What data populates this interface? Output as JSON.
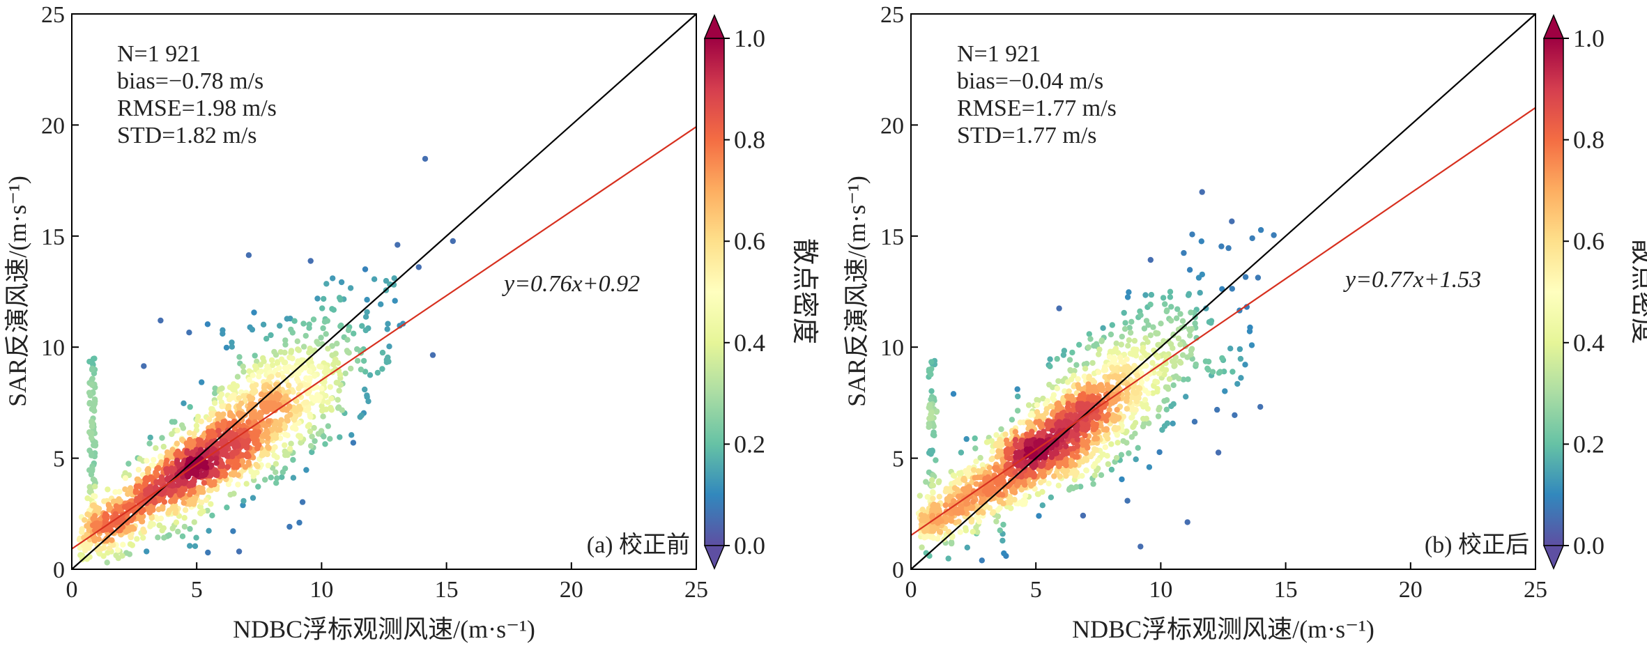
{
  "colormap": [
    "#5e4fa2",
    "#3288bd",
    "#66c2a5",
    "#abdda4",
    "#e6f598",
    "#ffffbf",
    "#fee08b",
    "#fdae61",
    "#f46d43",
    "#d53e4f",
    "#9e0142"
  ],
  "identity_line_color": "#000000",
  "fit_line_color": "#d7301f",
  "chart_data": [
    {
      "type": "scatter",
      "panel_label": "(a) 校正前",
      "xlabel": "NDBC浮标观测风速/(m·s⁻¹)",
      "ylabel": "SAR反演风速/(m·s⁻¹)",
      "xlim": [
        0,
        25
      ],
      "ylim": [
        0,
        25
      ],
      "x_ticks": [
        "0",
        "5",
        "10",
        "15",
        "20",
        "25"
      ],
      "y_ticks": [
        "0",
        "5",
        "10",
        "15",
        "20",
        "25"
      ],
      "grid": false,
      "stats": [
        "N=1 921",
        "bias=−0.78 m/s",
        "RMSE=1.98 m/s",
        "STD=1.82 m/s"
      ],
      "fit": {
        "slope": 0.76,
        "intercept": 0.92,
        "label": "y=0.76x+0.92"
      },
      "identity_line": true,
      "n_points": 1921,
      "colorbar": {
        "label": "散点密度",
        "range": [
          0,
          1
        ],
        "ticks": [
          "0.0",
          "0.2",
          "0.4",
          "0.6",
          "0.8",
          "1.0"
        ],
        "extend": "both",
        "colormap": "Spectral_r"
      }
    },
    {
      "type": "scatter",
      "panel_label": "(b) 校正后",
      "xlabel": "NDBC浮标观测风速/(m·s⁻¹)",
      "ylabel": "SAR反演风速/(m·s⁻¹)",
      "xlim": [
        0,
        25
      ],
      "ylim": [
        0,
        25
      ],
      "x_ticks": [
        "0",
        "5",
        "10",
        "15",
        "20",
        "25"
      ],
      "y_ticks": [
        "0",
        "5",
        "10",
        "15",
        "20",
        "25"
      ],
      "grid": false,
      "stats": [
        "N=1 921",
        "bias=−0.04 m/s",
        "RMSE=1.77 m/s",
        "STD=1.77 m/s"
      ],
      "fit": {
        "slope": 0.77,
        "intercept": 1.53,
        "label": "y=0.77x+1.53"
      },
      "identity_line": true,
      "n_points": 1921,
      "colorbar": {
        "label": "散点密度",
        "range": [
          0,
          1
        ],
        "ticks": [
          "0.0",
          "0.2",
          "0.4",
          "0.6",
          "0.8",
          "1.0"
        ],
        "extend": "both",
        "colormap": "Spectral_r"
      }
    }
  ]
}
